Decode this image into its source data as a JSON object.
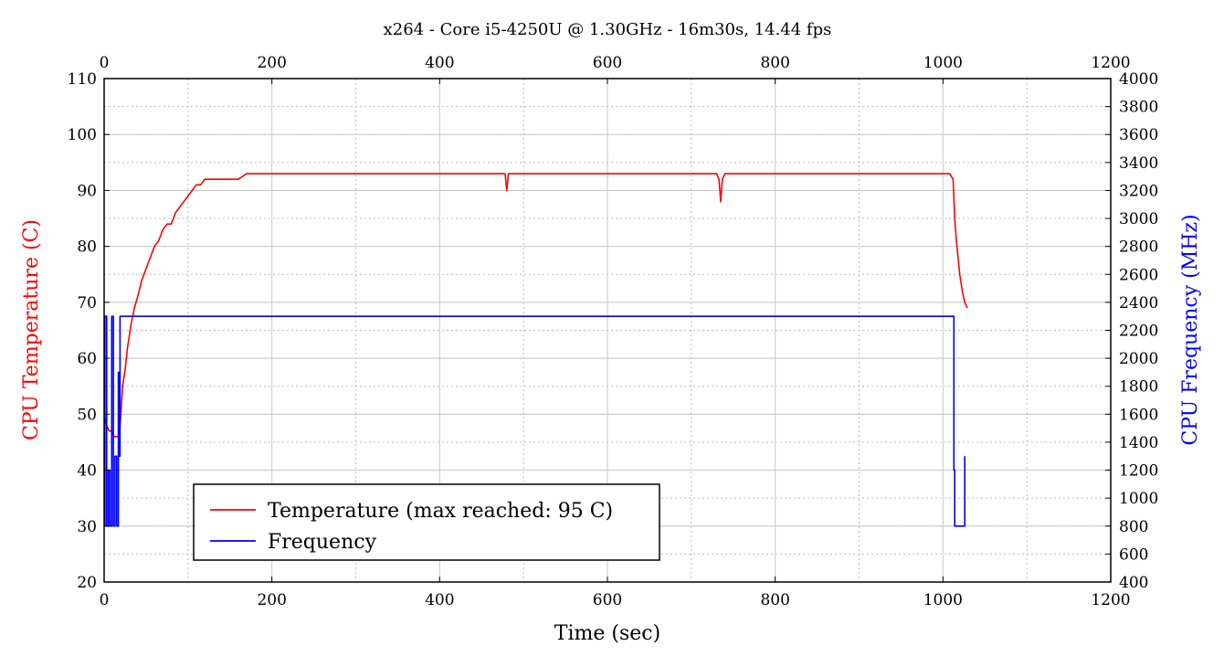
{
  "chart_data": {
    "type": "line",
    "title": "x264 - Core i5-4250U @ 1.30GHz - 16m30s, 14.44 fps",
    "xlabel": "Time (sec)",
    "ylabel_left": "CPU Temperature (C)",
    "ylabel_right": "CPU Frequency (MHz)",
    "xlim": [
      0,
      1200
    ],
    "ylim_left": [
      20,
      110
    ],
    "ylim_right": [
      400,
      4000
    ],
    "x_ticks": [
      "0",
      "200",
      "400",
      "600",
      "800",
      "1000",
      "1200"
    ],
    "x_ticks_top": [
      "0",
      "200",
      "400",
      "600",
      "800",
      "1000",
      "1200"
    ],
    "y_left_ticks": [
      "20",
      "30",
      "40",
      "50",
      "60",
      "70",
      "80",
      "90",
      "100",
      "110"
    ],
    "y_right_ticks": [
      "400",
      "600",
      "800",
      "1000",
      "1200",
      "1400",
      "1600",
      "1800",
      "2000",
      "2200",
      "2400",
      "2600",
      "2800",
      "3000",
      "3200",
      "3400",
      "3600",
      "3800",
      "4000"
    ],
    "grid": true,
    "legend_position": "bottom-left",
    "legend": [
      {
        "label": "Temperature (max reached: 95 C)",
        "color": "#ff0000"
      },
      {
        "label": "Frequency",
        "color": "#0000ff"
      }
    ],
    "series": [
      {
        "name": "Temperature (max reached: 95 C)",
        "axis": "left",
        "color": "#ff0000",
        "x": [
          0,
          3,
          6,
          9,
          12,
          15,
          18,
          20,
          22,
          25,
          28,
          32,
          36,
          40,
          45,
          50,
          55,
          60,
          65,
          70,
          75,
          80,
          85,
          90,
          95,
          100,
          105,
          110,
          115,
          120,
          130,
          140,
          150,
          160,
          170,
          180,
          190,
          200,
          210,
          220,
          230,
          240,
          250,
          260,
          270,
          280,
          290,
          300,
          310,
          320,
          330,
          340,
          350,
          360,
          370,
          380,
          390,
          400,
          420,
          440,
          460,
          470,
          478,
          480,
          482,
          490,
          500,
          520,
          540,
          560,
          580,
          600,
          620,
          640,
          660,
          680,
          700,
          710,
          720,
          730,
          733,
          735,
          737,
          740,
          750,
          760,
          780,
          800,
          820,
          840,
          860,
          880,
          900,
          920,
          940,
          960,
          980,
          1000,
          1008,
          1012,
          1014,
          1016,
          1018,
          1020,
          1023,
          1026,
          1029
        ],
        "y": [
          50,
          48,
          47,
          47,
          46,
          46,
          46,
          50,
          55,
          58,
          62,
          66,
          69,
          71,
          74,
          76,
          78,
          80,
          81,
          83,
          84,
          84,
          86,
          87,
          88,
          89,
          90,
          91,
          91,
          92,
          92,
          92,
          92,
          92,
          93,
          93,
          93,
          93,
          93,
          93,
          93,
          93,
          93,
          93,
          93,
          93,
          93,
          93,
          93,
          93,
          93,
          93,
          93,
          93,
          93,
          93,
          93,
          93,
          93,
          93,
          93,
          93,
          93,
          90,
          93,
          93,
          93,
          93,
          93,
          93,
          93,
          93,
          93,
          93,
          93,
          93,
          93,
          93,
          93,
          93,
          92,
          88,
          92,
          93,
          93,
          93,
          93,
          93,
          93,
          93,
          93,
          93,
          93,
          93,
          93,
          93,
          93,
          93,
          93,
          92,
          85,
          81,
          78,
          75,
          72,
          70,
          69
        ]
      },
      {
        "name": "Frequency",
        "axis": "right",
        "color": "#0000ff",
        "x": [
          0,
          1,
          1,
          3,
          3,
          5,
          5,
          7,
          7,
          9,
          9,
          11,
          11,
          13,
          13,
          15,
          15,
          17,
          17,
          18,
          18,
          19,
          19,
          1013,
          1013,
          1014,
          1014,
          1026,
          1026
        ],
        "y": [
          800,
          800,
          2300,
          2300,
          800,
          800,
          1200,
          1200,
          800,
          800,
          2300,
          2300,
          800,
          800,
          1300,
          1300,
          800,
          800,
          1900,
          1900,
          1300,
          1300,
          2300,
          2300,
          1200,
          1200,
          800,
          800,
          1300
        ]
      }
    ]
  }
}
